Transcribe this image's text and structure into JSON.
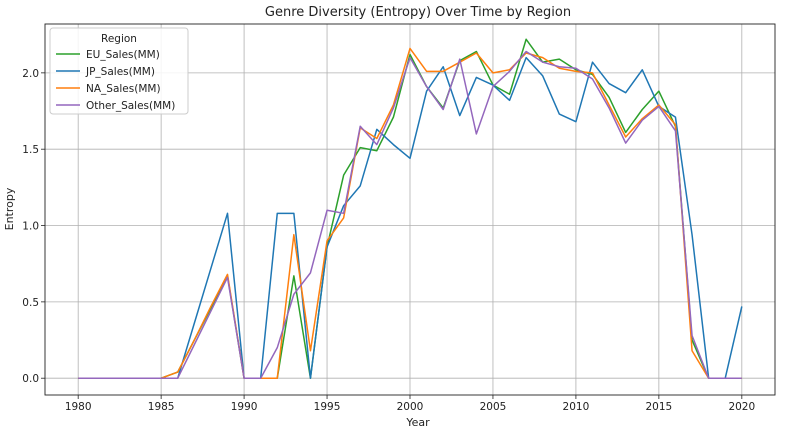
{
  "chart_data": {
    "type": "line",
    "title": "Genre Diversity (Entropy) Over Time by Region",
    "xlabel": "Year",
    "ylabel": "Entropy",
    "xlim": [
      1978,
      2022
    ],
    "ylim": [
      -0.11,
      2.32
    ],
    "xticks": [
      1980,
      1985,
      1990,
      1995,
      2000,
      2005,
      2010,
      2015,
      2020
    ],
    "yticks": [
      0.0,
      0.5,
      1.0,
      1.5,
      2.0
    ],
    "grid": true,
    "legend": {
      "title": "Region",
      "placement": "top-left"
    },
    "x": [
      1980,
      1981,
      1982,
      1983,
      1984,
      1985,
      1986,
      1987,
      1988,
      1989,
      1990,
      1991,
      1992,
      1993,
      1994,
      1995,
      1996,
      1997,
      1998,
      1999,
      2000,
      2001,
      2002,
      2003,
      2004,
      2005,
      2006,
      2007,
      2008,
      2009,
      2010,
      2011,
      2012,
      2013,
      2014,
      2015,
      2016,
      2017,
      2018,
      2019,
      2020
    ],
    "series": [
      {
        "name": "EU_Sales(MM)",
        "color": "#2ca02c",
        "values": [
          0,
          0,
          0,
          0,
          0,
          0,
          0.04,
          0.25,
          0.46,
          0.67,
          0,
          0,
          0,
          0.67,
          0,
          0.86,
          1.33,
          1.51,
          1.49,
          1.71,
          2.12,
          1.91,
          1.77,
          2.08,
          2.14,
          1.92,
          1.86,
          2.22,
          2.07,
          2.09,
          2.02,
          1.99,
          1.84,
          1.61,
          1.76,
          1.88,
          1.65,
          0.25,
          0,
          0,
          0
        ]
      },
      {
        "name": "JP_Sales(MM)",
        "color": "#1f77b4",
        "values": [
          0,
          0,
          0,
          0,
          0,
          0,
          0,
          0.36,
          0.72,
          1.08,
          0,
          0,
          1.08,
          1.08,
          0,
          0.86,
          1.13,
          1.26,
          1.63,
          1.53,
          1.44,
          1.88,
          2.04,
          1.72,
          1.97,
          1.92,
          1.82,
          2.1,
          1.98,
          1.73,
          1.68,
          2.07,
          1.93,
          1.87,
          2.02,
          1.78,
          1.71,
          0.94,
          0,
          0,
          0.47
        ]
      },
      {
        "name": "NA_Sales(MM)",
        "color": "#ff7f0e",
        "values": [
          0,
          0,
          0,
          0,
          0,
          0,
          0.04,
          0.25,
          0.47,
          0.68,
          0,
          0,
          0,
          0.94,
          0.18,
          0.9,
          1.05,
          1.64,
          1.57,
          1.79,
          2.16,
          2.01,
          2.01,
          2.07,
          2.13,
          2,
          2.02,
          2.13,
          2.1,
          2.03,
          2.01,
          2,
          1.79,
          1.58,
          1.7,
          1.79,
          1.66,
          0.18,
          0,
          0,
          0
        ]
      },
      {
        "name": "Other_Sales(MM)",
        "color": "#9467bd",
        "values": [
          0,
          0,
          0,
          0,
          0,
          0,
          0,
          0.22,
          0.44,
          0.66,
          0,
          0,
          0.2,
          0.55,
          0.69,
          1.1,
          1.08,
          1.65,
          1.53,
          1.77,
          2.1,
          1.91,
          1.76,
          2.09,
          1.6,
          1.91,
          2.01,
          2.14,
          2.07,
          2.04,
          2.03,
          1.96,
          1.77,
          1.54,
          1.69,
          1.78,
          1.62,
          0.28,
          0,
          0,
          0
        ]
      }
    ]
  }
}
